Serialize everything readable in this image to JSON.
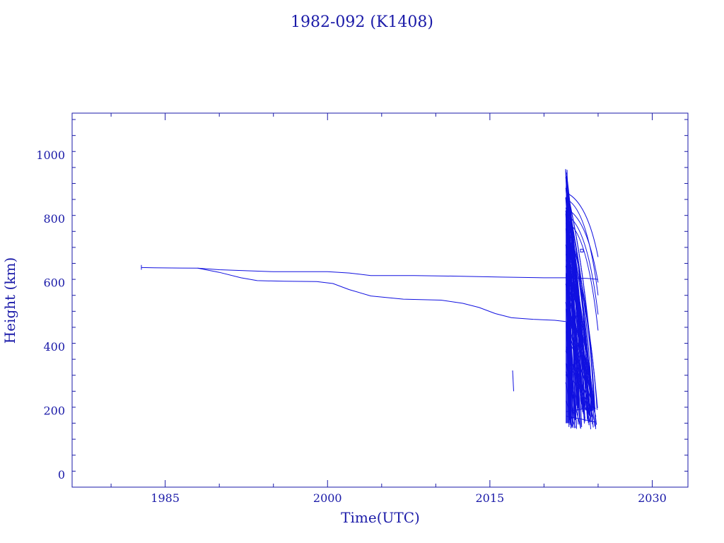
{
  "chart_data": {
    "type": "line",
    "title": "1982-092 (K1408)",
    "xlabel": "Time(UTC)",
    "ylabel": "Height (km)",
    "xlim": [
      1976.4,
      2033.3
    ],
    "ylim": [
      -40,
      1130
    ],
    "x_ticks": [
      1985,
      2000,
      2015,
      2030
    ],
    "x_tick_labels": [
      "1985",
      "2000",
      "2015",
      "2030"
    ],
    "y_ticks": [
      0,
      200,
      400,
      600,
      800,
      1000
    ],
    "y_tick_labels": [
      "0",
      "200",
      "400",
      "600",
      "800",
      "1000"
    ],
    "grid": false,
    "color": "#1010e0",
    "series": [
      {
        "x": [
          1982.8,
          1984.0,
          1988.0,
          1990.0,
          1995.0,
          2000.0,
          2002.0,
          2004.0,
          2008.0,
          2012.0,
          2016.0,
          2020.0,
          2022.0,
          2024.0,
          2025.0
        ],
        "y": [
          647,
          646,
          645,
          640,
          634,
          634,
          630,
          622,
          622,
          620,
          617,
          615,
          615,
          613,
          610
        ]
      },
      {
        "x": [
          1988.0,
          1990.0,
          1992.0,
          1993.5,
          1996.0,
          1999.0,
          2000.5,
          2002.0,
          2004.0,
          2007.0,
          2010.5,
          2012.5,
          2014.0,
          2015.5,
          2017.0,
          2019.0,
          2021.0,
          2022.0
        ],
        "y": [
          645,
          632,
          615,
          606,
          604,
          603,
          597,
          578,
          558,
          548,
          545,
          535,
          522,
          503,
          490,
          485,
          482,
          478
        ]
      },
      {
        "x": [
          2017.1,
          2017.2
        ],
        "y": [
          325,
          260
        ]
      }
    ],
    "debris_cloud": {
      "x_range": [
        2022.0,
        2025.0
      ],
      "y_range": [
        140,
        955
      ],
      "description_values": [
        955,
        880,
        800,
        700,
        600,
        500,
        400,
        300,
        200,
        150
      ]
    }
  }
}
